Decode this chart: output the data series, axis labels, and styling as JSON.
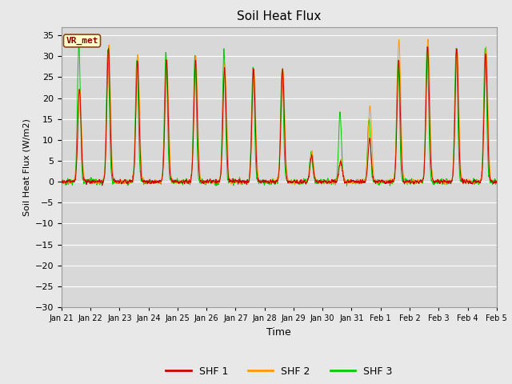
{
  "title": "Soil Heat Flux",
  "ylabel": "Soil Heat Flux (W/m2)",
  "xlabel": "Time",
  "ylim": [
    -30,
    37
  ],
  "yticks": [
    -30,
    -25,
    -20,
    -15,
    -10,
    -5,
    0,
    5,
    10,
    15,
    20,
    25,
    30,
    35
  ],
  "xtick_labels": [
    "Jan 21",
    "Jan 22",
    "Jan 23",
    "Jan 24",
    "Jan 25",
    "Jan 26",
    "Jan 27",
    "Jan 28",
    "Jan 29",
    "Jan 30",
    "Jan 31",
    "Feb 1",
    "Feb 2",
    "Feb 3",
    "Feb 4",
    "Feb 5"
  ],
  "colors": {
    "SHF1": "#cc0000",
    "SHF2": "#ff9900",
    "SHF3": "#00cc00"
  },
  "legend_labels": [
    "SHF 1",
    "SHF 2",
    "SHF 3"
  ],
  "watermark": "VR_met",
  "bg_color": "#e8e8e8",
  "plot_bg_color": "#d8d8d8",
  "linewidth": 0.7,
  "n_days": 15,
  "pts_per_day": 240
}
